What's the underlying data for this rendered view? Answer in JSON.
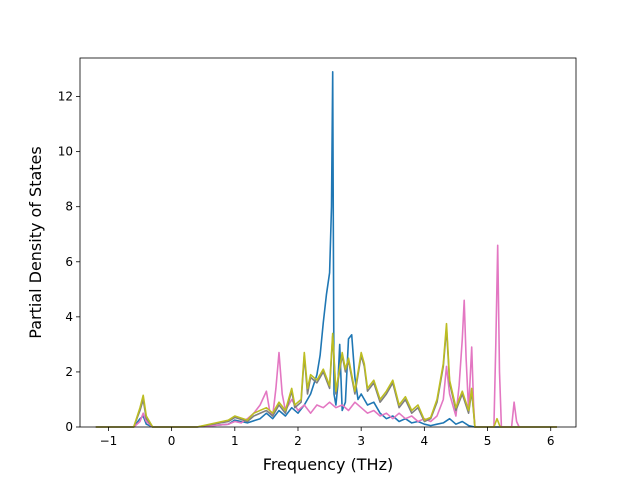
{
  "chart_data": {
    "type": "line",
    "title": "",
    "xlabel": "Frequency (THz)",
    "ylabel": "Partial Density of States",
    "xlim": [
      -1.45,
      6.4
    ],
    "ylim": [
      0,
      13.4
    ],
    "xticks": [
      -1,
      0,
      1,
      2,
      3,
      4,
      5,
      6
    ],
    "yticks": [
      0,
      2,
      4,
      6,
      8,
      10,
      12
    ],
    "grid": false,
    "legend": "none",
    "series": [
      {
        "color": "#1f77b4",
        "points": [
          [
            -1.2,
            0
          ],
          [
            -0.6,
            0
          ],
          [
            -0.5,
            0.3
          ],
          [
            -0.45,
            0.4
          ],
          [
            -0.4,
            0.1
          ],
          [
            -0.3,
            0
          ],
          [
            0.4,
            0
          ],
          [
            0.9,
            0.1
          ],
          [
            1.0,
            0.25
          ],
          [
            1.2,
            0.15
          ],
          [
            1.4,
            0.3
          ],
          [
            1.5,
            0.5
          ],
          [
            1.6,
            0.3
          ],
          [
            1.7,
            0.6
          ],
          [
            1.8,
            0.4
          ],
          [
            1.9,
            0.7
          ],
          [
            2.0,
            0.5
          ],
          [
            2.1,
            0.8
          ],
          [
            2.2,
            1.2
          ],
          [
            2.3,
            1.9
          ],
          [
            2.35,
            2.6
          ],
          [
            2.4,
            3.8
          ],
          [
            2.45,
            4.8
          ],
          [
            2.5,
            5.6
          ],
          [
            2.53,
            8.0
          ],
          [
            2.55,
            12.9
          ],
          [
            2.57,
            1.2
          ],
          [
            2.6,
            0.8
          ],
          [
            2.63,
            1.5
          ],
          [
            2.66,
            3.0
          ],
          [
            2.7,
            0.6
          ],
          [
            2.75,
            0.9
          ],
          [
            2.8,
            3.2
          ],
          [
            2.85,
            3.35
          ],
          [
            2.9,
            1.8
          ],
          [
            2.95,
            1.0
          ],
          [
            3.0,
            1.2
          ],
          [
            3.1,
            0.8
          ],
          [
            3.2,
            0.9
          ],
          [
            3.3,
            0.5
          ],
          [
            3.4,
            0.3
          ],
          [
            3.5,
            0.4
          ],
          [
            3.6,
            0.2
          ],
          [
            3.7,
            0.3
          ],
          [
            3.8,
            0.15
          ],
          [
            3.9,
            0.2
          ],
          [
            4.0,
            0.1
          ],
          [
            4.1,
            0.05
          ],
          [
            4.2,
            0.1
          ],
          [
            4.3,
            0.15
          ],
          [
            4.4,
            0.3
          ],
          [
            4.5,
            0.1
          ],
          [
            4.6,
            0.2
          ],
          [
            4.7,
            0.05
          ],
          [
            4.8,
            0
          ],
          [
            6.1,
            0
          ]
        ]
      },
      {
        "color": "#e377c2",
        "points": [
          [
            -1.2,
            0
          ],
          [
            -0.6,
            0
          ],
          [
            -0.5,
            0.2
          ],
          [
            -0.45,
            0.5
          ],
          [
            -0.4,
            0.2
          ],
          [
            -0.3,
            0
          ],
          [
            0.4,
            0
          ],
          [
            0.9,
            0.1
          ],
          [
            1.0,
            0.2
          ],
          [
            1.1,
            0.15
          ],
          [
            1.2,
            0.3
          ],
          [
            1.3,
            0.5
          ],
          [
            1.4,
            0.8
          ],
          [
            1.5,
            1.3
          ],
          [
            1.55,
            0.6
          ],
          [
            1.6,
            0.4
          ],
          [
            1.65,
            1.4
          ],
          [
            1.7,
            2.7
          ],
          [
            1.75,
            1.2
          ],
          [
            1.8,
            0.6
          ],
          [
            1.9,
            1.0
          ],
          [
            2.0,
            0.6
          ],
          [
            2.1,
            0.8
          ],
          [
            2.2,
            0.5
          ],
          [
            2.3,
            0.8
          ],
          [
            2.4,
            0.7
          ],
          [
            2.5,
            0.9
          ],
          [
            2.6,
            0.7
          ],
          [
            2.7,
            0.8
          ],
          [
            2.8,
            0.6
          ],
          [
            2.9,
            0.9
          ],
          [
            3.0,
            0.7
          ],
          [
            3.1,
            0.5
          ],
          [
            3.2,
            0.6
          ],
          [
            3.3,
            0.4
          ],
          [
            3.4,
            0.5
          ],
          [
            3.5,
            0.3
          ],
          [
            3.6,
            0.5
          ],
          [
            3.7,
            0.3
          ],
          [
            3.8,
            0.4
          ],
          [
            3.9,
            0.2
          ],
          [
            4.0,
            0.3
          ],
          [
            4.1,
            0.2
          ],
          [
            4.2,
            0.4
          ],
          [
            4.3,
            1.0
          ],
          [
            4.35,
            2.2
          ],
          [
            4.4,
            1.2
          ],
          [
            4.5,
            0.4
          ],
          [
            4.55,
            1.5
          ],
          [
            4.6,
            3.2
          ],
          [
            4.63,
            4.6
          ],
          [
            4.66,
            2.5
          ],
          [
            4.7,
            0.6
          ],
          [
            4.75,
            2.9
          ],
          [
            4.78,
            0.8
          ],
          [
            4.8,
            0
          ],
          [
            5.1,
            0
          ],
          [
            5.13,
            3.0
          ],
          [
            5.16,
            6.6
          ],
          [
            5.19,
            2.0
          ],
          [
            5.22,
            0
          ],
          [
            5.38,
            0
          ],
          [
            5.42,
            0.9
          ],
          [
            5.46,
            0.2
          ],
          [
            5.5,
            0
          ],
          [
            6.1,
            0
          ]
        ]
      },
      {
        "color": "#7f7f7f",
        "points": [
          [
            -1.2,
            0
          ],
          [
            -0.6,
            0
          ],
          [
            -0.5,
            0.6
          ],
          [
            -0.45,
            1.0
          ],
          [
            -0.4,
            0.3
          ],
          [
            -0.3,
            0
          ],
          [
            0.4,
            0
          ],
          [
            0.9,
            0.2
          ],
          [
            1.0,
            0.35
          ],
          [
            1.2,
            0.2
          ],
          [
            1.3,
            0.4
          ],
          [
            1.5,
            0.6
          ],
          [
            1.6,
            0.4
          ],
          [
            1.7,
            0.8
          ],
          [
            1.8,
            0.5
          ],
          [
            1.9,
            1.3
          ],
          [
            1.95,
            0.7
          ],
          [
            2.05,
            0.9
          ],
          [
            2.1,
            2.6
          ],
          [
            2.15,
            1.2
          ],
          [
            2.2,
            1.8
          ],
          [
            2.3,
            1.6
          ],
          [
            2.4,
            2.0
          ],
          [
            2.5,
            1.4
          ],
          [
            2.55,
            3.3
          ],
          [
            2.6,
            1.2
          ],
          [
            2.7,
            2.6
          ],
          [
            2.75,
            2.0
          ],
          [
            2.8,
            2.4
          ],
          [
            2.9,
            1.2
          ],
          [
            3.0,
            2.6
          ],
          [
            3.05,
            2.2
          ],
          [
            3.1,
            1.3
          ],
          [
            3.2,
            1.6
          ],
          [
            3.3,
            0.9
          ],
          [
            3.4,
            1.2
          ],
          [
            3.5,
            1.6
          ],
          [
            3.6,
            0.7
          ],
          [
            3.7,
            1.0
          ],
          [
            3.8,
            0.5
          ],
          [
            3.9,
            0.7
          ],
          [
            4.0,
            0.2
          ],
          [
            4.1,
            0.3
          ],
          [
            4.2,
            0.9
          ],
          [
            4.3,
            2.2
          ],
          [
            4.35,
            3.6
          ],
          [
            4.4,
            1.6
          ],
          [
            4.5,
            0.6
          ],
          [
            4.6,
            1.2
          ],
          [
            4.7,
            0.5
          ],
          [
            4.75,
            1.3
          ],
          [
            4.8,
            0
          ],
          [
            6.1,
            0
          ]
        ]
      },
      {
        "color": "#bcbd22",
        "points": [
          [
            -1.2,
            0
          ],
          [
            -0.6,
            0
          ],
          [
            -0.5,
            0.7
          ],
          [
            -0.45,
            1.15
          ],
          [
            -0.4,
            0.4
          ],
          [
            -0.3,
            0
          ],
          [
            0.4,
            0
          ],
          [
            0.9,
            0.25
          ],
          [
            1.0,
            0.4
          ],
          [
            1.2,
            0.25
          ],
          [
            1.3,
            0.5
          ],
          [
            1.5,
            0.7
          ],
          [
            1.6,
            0.5
          ],
          [
            1.7,
            0.9
          ],
          [
            1.8,
            0.6
          ],
          [
            1.9,
            1.4
          ],
          [
            1.95,
            0.8
          ],
          [
            2.05,
            1.0
          ],
          [
            2.1,
            2.7
          ],
          [
            2.15,
            1.4
          ],
          [
            2.2,
            1.9
          ],
          [
            2.3,
            1.7
          ],
          [
            2.4,
            2.1
          ],
          [
            2.5,
            1.5
          ],
          [
            2.55,
            3.4
          ],
          [
            2.6,
            1.3
          ],
          [
            2.7,
            2.7
          ],
          [
            2.75,
            2.1
          ],
          [
            2.8,
            2.5
          ],
          [
            2.9,
            1.3
          ],
          [
            3.0,
            2.7
          ],
          [
            3.05,
            2.3
          ],
          [
            3.1,
            1.4
          ],
          [
            3.2,
            1.7
          ],
          [
            3.3,
            1.0
          ],
          [
            3.4,
            1.3
          ],
          [
            3.5,
            1.7
          ],
          [
            3.6,
            0.8
          ],
          [
            3.7,
            1.1
          ],
          [
            3.8,
            0.6
          ],
          [
            3.9,
            0.8
          ],
          [
            4.0,
            0.25
          ],
          [
            4.1,
            0.35
          ],
          [
            4.2,
            1.0
          ],
          [
            4.3,
            2.3
          ],
          [
            4.35,
            3.75
          ],
          [
            4.4,
            1.7
          ],
          [
            4.5,
            0.7
          ],
          [
            4.6,
            1.3
          ],
          [
            4.7,
            0.6
          ],
          [
            4.75,
            1.4
          ],
          [
            4.8,
            0
          ],
          [
            5.1,
            0
          ],
          [
            5.15,
            0.3
          ],
          [
            5.2,
            0
          ],
          [
            6.1,
            0
          ]
        ]
      }
    ]
  }
}
